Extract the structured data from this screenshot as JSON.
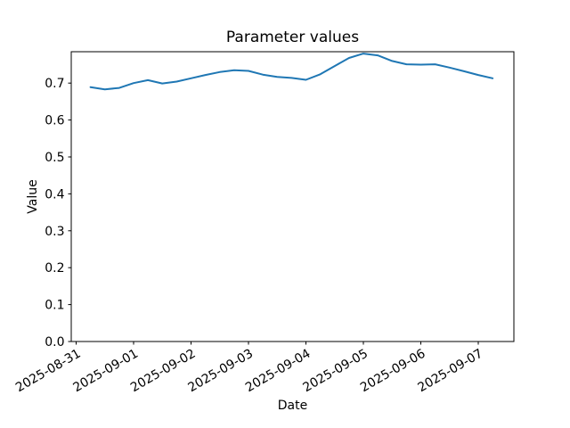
{
  "chart_data": {
    "type": "line",
    "title": "Parameter values",
    "xlabel": "Date",
    "ylabel": "Value",
    "line_color": "#1f77b4",
    "background_color": "#ffffff",
    "grid": false,
    "legend": null,
    "x_unit": "days since 2025-08-31 00:00",
    "xlim_days": [
      -0.085,
      7.62
    ],
    "ylim": [
      0,
      0.785
    ],
    "x_tick_positions_days": [
      0,
      1,
      2,
      3,
      4,
      5,
      6,
      7
    ],
    "x_tick_labels": [
      "2025-08-31",
      "2025-09-01",
      "2025-09-02",
      "2025-09-03",
      "2025-09-04",
      "2025-09-05",
      "2025-09-06",
      "2025-09-07"
    ],
    "x_tick_rotation_deg": 30,
    "y_tick_values": [
      0.0,
      0.1,
      0.2,
      0.3,
      0.4,
      0.5,
      0.6,
      0.7
    ],
    "y_tick_labels": [
      "0.0",
      "0.1",
      "0.2",
      "0.3",
      "0.4",
      "0.5",
      "0.6",
      "0.7"
    ],
    "series": [
      {
        "name": "parameter-values",
        "x_days": [
          0.25,
          0.5,
          0.75,
          1.0,
          1.25,
          1.5,
          1.75,
          2.0,
          2.25,
          2.5,
          2.75,
          3.0,
          3.25,
          3.5,
          3.75,
          4.0,
          4.25,
          4.5,
          4.75,
          5.0,
          5.25,
          5.5,
          5.75,
          6.0,
          6.25,
          6.5,
          6.75,
          7.0,
          7.25
        ],
        "values": [
          0.689,
          0.683,
          0.687,
          0.7,
          0.708,
          0.699,
          0.704,
          0.713,
          0.722,
          0.73,
          0.735,
          0.733,
          0.723,
          0.717,
          0.714,
          0.709,
          0.724,
          0.746,
          0.768,
          0.78,
          0.775,
          0.76,
          0.751,
          0.75,
          0.751,
          0.742,
          0.732,
          0.722,
          0.713
        ]
      }
    ]
  }
}
